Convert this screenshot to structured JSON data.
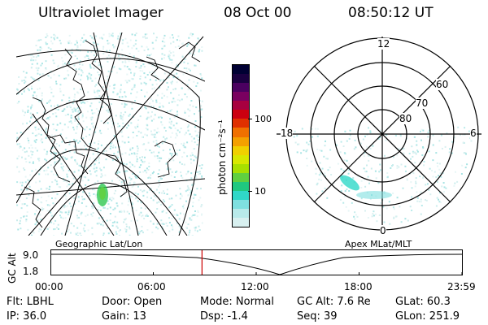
{
  "header": {
    "instrument": "Ultraviolet Imager",
    "date": "08 Oct 00",
    "time": "08:50:12 UT"
  },
  "geo_panel": {
    "label": "Geographic Lat/Lon"
  },
  "apex_panel": {
    "label": "Apex MLat/MLT",
    "mlt_labels": {
      "top": "12",
      "left": "18",
      "right": "6",
      "bottom": "0"
    },
    "lat_labels": [
      "60",
      "70",
      "80"
    ]
  },
  "colorbar": {
    "label": "photon cm⁻²s⁻¹",
    "ticks": [
      "100",
      "10"
    ],
    "colors": [
      "#000033",
      "#1a0040",
      "#4b0060",
      "#7a0060",
      "#a80040",
      "#cc0010",
      "#e03000",
      "#f07000",
      "#f4a000",
      "#f0d000",
      "#d8e800",
      "#a8e000",
      "#60d040",
      "#20c880",
      "#30d8c8",
      "#7fe0e0",
      "#b8eaea",
      "#d8f0f0"
    ]
  },
  "timeline": {
    "axis_label": "GC Alt",
    "y_ticks": [
      "9.0",
      "1.8"
    ],
    "x_ticks": [
      "00:00",
      "06:00",
      "12:00",
      "18:00",
      "23:59"
    ],
    "current_marker_hour": 8.84
  },
  "footer": {
    "row1": {
      "flt": "Flt: LBHL",
      "door": "Door: Open",
      "mode": "Mode: Normal",
      "gcalt": "GC Alt: 7.6 Re",
      "glat": "GLat:  60.3"
    },
    "row2": {
      "ip": "IP: 36.0",
      "gain": "Gain: 13",
      "dsp": "Dsp:   -1.4",
      "seq": "Seq: 39",
      "glon": "GLon: 251.9"
    }
  }
}
